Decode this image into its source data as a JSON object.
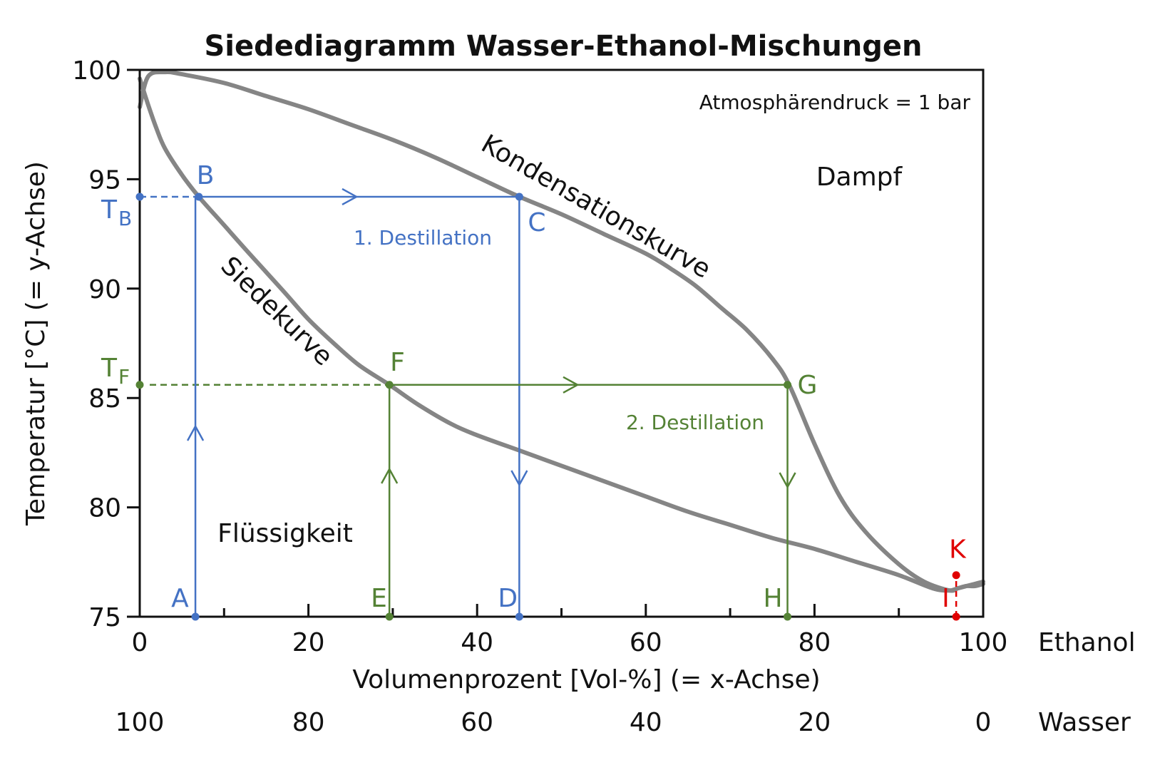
{
  "chart_data": {
    "type": "line",
    "title": "Siedediagramm Wasser-Ethanol-Mischungen",
    "note": "Atmosphärendruck = 1 bar",
    "xlabel": "Volumenprozent [Vol-%] (= x-Achse)",
    "ylabel": "Temperatur [°C] (= y-Achse)",
    "xlim": [
      0,
      100
    ],
    "ylim": [
      75,
      100
    ],
    "x_ticks": [
      "0",
      "20",
      "40",
      "60",
      "80",
      "100"
    ],
    "x_tick_values": [
      0,
      20,
      40,
      60,
      80,
      100
    ],
    "x_minor_ticks": [
      10,
      30,
      50,
      70,
      90
    ],
    "x_axis_name": "Ethanol",
    "secondary_x_ticks": [
      "100",
      "80",
      "60",
      "40",
      "20",
      "0"
    ],
    "secondary_x_axis_name": "Wasser",
    "y_ticks": [
      "75",
      "80",
      "85",
      "90",
      "95",
      "100"
    ],
    "y_tick_values": [
      75,
      80,
      85,
      90,
      95,
      100
    ],
    "grid": false,
    "colors": {
      "curve": "#858585",
      "blue": "#4472C4",
      "green": "#548235",
      "red": "#E00000",
      "text": "#111111"
    },
    "region_labels": {
      "liquid": "Flüssigkeit",
      "vapor": "Dampf"
    },
    "curve_labels": {
      "boiling": "Siedekurve",
      "condensation": "Kondensationskurve"
    },
    "series": [
      {
        "name": "Siedekurve",
        "x": [
          0,
          1,
          2,
          3,
          5,
          7,
          10,
          13,
          17,
          20,
          23,
          26,
          29.6,
          33,
          37,
          40,
          45,
          50,
          55,
          60,
          65,
          70,
          75,
          80,
          85,
          90,
          94,
          96,
          97,
          98,
          99,
          100
        ],
        "y": [
          99.6,
          98.4,
          97.3,
          96.4,
          95.2,
          94.2,
          92.9,
          91.6,
          89.9,
          88.6,
          87.5,
          86.5,
          85.6,
          84.7,
          83.8,
          83.3,
          82.6,
          81.9,
          81.2,
          80.5,
          79.8,
          79.2,
          78.6,
          78.1,
          77.5,
          76.9,
          76.3,
          76.2,
          76.3,
          76.4,
          76.4,
          76.5
        ]
      },
      {
        "name": "Kondensationskurve",
        "x": [
          0,
          1,
          3,
          5,
          10,
          15,
          20,
          25,
          30,
          35,
          40,
          45,
          50,
          55,
          60,
          63,
          66,
          69,
          72,
          75,
          77,
          80,
          83,
          86,
          90,
          93,
          96,
          97,
          98,
          99,
          100
        ],
        "y": [
          98.3,
          99.7,
          99.9,
          99.8,
          99.4,
          98.8,
          98.2,
          97.5,
          96.8,
          96.0,
          95.1,
          94.2,
          93.4,
          92.5,
          91.6,
          90.9,
          90.1,
          89.1,
          88.1,
          86.8,
          85.6,
          82.9,
          80.5,
          78.9,
          77.4,
          76.6,
          76.2,
          76.3,
          76.4,
          76.5,
          76.6
        ]
      }
    ],
    "points": [
      {
        "label": "A",
        "x": 6.6,
        "y": 75,
        "color": "blue"
      },
      {
        "label": "B",
        "x": 7.0,
        "y": 94.2,
        "color": "blue"
      },
      {
        "label": "C",
        "x": 45.0,
        "y": 94.2,
        "color": "blue"
      },
      {
        "label": "D",
        "x": 45.0,
        "y": 75,
        "color": "blue"
      },
      {
        "label": "E",
        "x": 29.6,
        "y": 75,
        "color": "green"
      },
      {
        "label": "F",
        "x": 29.6,
        "y": 85.6,
        "color": "green"
      },
      {
        "label": "G",
        "x": 76.8,
        "y": 85.6,
        "color": "green"
      },
      {
        "label": "H",
        "x": 76.8,
        "y": 75,
        "color": "green"
      },
      {
        "label": "I",
        "x": 96.8,
        "y": 75,
        "color": "red"
      },
      {
        "label": "K",
        "x": 96.8,
        "y": 76.9,
        "color": "red"
      }
    ],
    "temperature_marks": [
      {
        "label": "T",
        "subscript": "B",
        "y": 94.2,
        "color": "blue"
      },
      {
        "label": "T",
        "subscript": "F",
        "y": 85.6,
        "color": "green"
      }
    ],
    "annotations": [
      {
        "text": "1. Destillation",
        "color": "blue"
      },
      {
        "text": "2. Destillation",
        "color": "green"
      }
    ]
  }
}
